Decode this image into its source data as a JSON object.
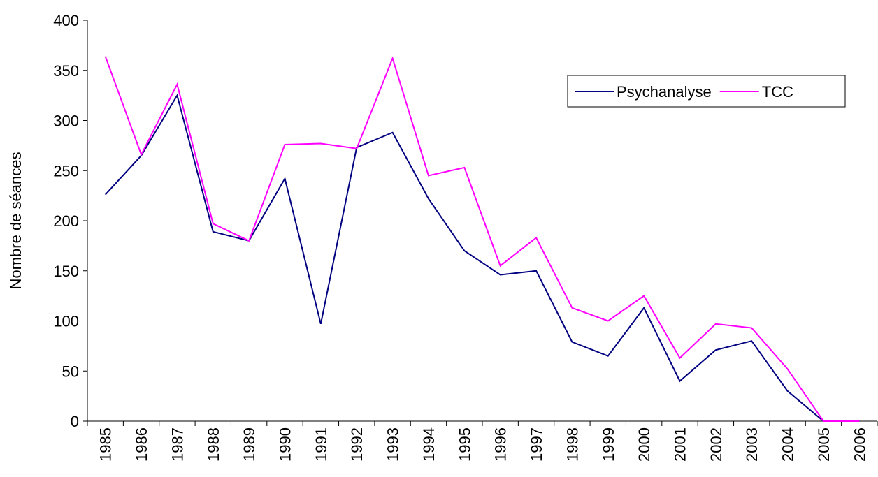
{
  "chart_data": {
    "type": "line",
    "y_label": "Nombre de séances",
    "categories": [
      "1985",
      "1986",
      "1987",
      "1988",
      "1989",
      "1990",
      "1991",
      "1992",
      "1993",
      "1994",
      "1995",
      "1996",
      "1997",
      "1998",
      "1999",
      "2000",
      "2001",
      "2002",
      "2003",
      "2004",
      "2005",
      "2006"
    ],
    "series": [
      {
        "name": "Psychanalyse",
        "color": "#000080",
        "values": [
          226,
          265,
          325,
          189,
          180,
          242,
          97,
          273,
          288,
          222,
          170,
          146,
          150,
          79,
          65,
          113,
          40,
          71,
          80,
          30,
          0,
          0
        ]
      },
      {
        "name": "TCC",
        "color": "#ff00ff",
        "values": [
          364,
          266,
          336,
          197,
          180,
          276,
          277,
          272,
          362,
          245,
          253,
          155,
          183,
          113,
          100,
          125,
          63,
          97,
          93,
          52,
          0,
          0
        ]
      }
    ],
    "ylim": [
      0,
      400
    ],
    "yticks": [
      0,
      50,
      100,
      150,
      200,
      250,
      300,
      350,
      400
    ],
    "legend": "upper right"
  }
}
